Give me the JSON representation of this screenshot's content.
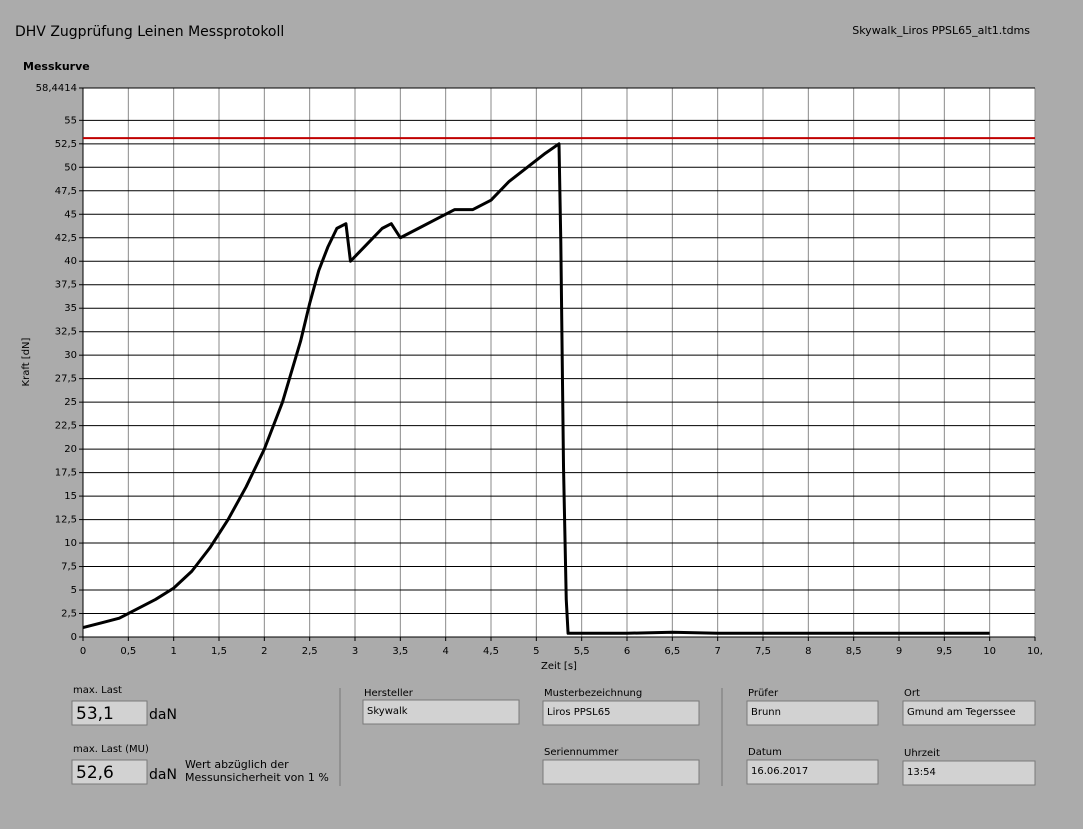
{
  "header": {
    "title": "DHV Zugprüfung Leinen Messprotokoll",
    "file": "Skywalk_Liros PPSL65_alt1.tdms"
  },
  "chart_data": {
    "type": "line",
    "title": "Messkurve",
    "x_label": "Zeit [s]",
    "y_label": "Kraft [dN]",
    "x": [
      0,
      0.2,
      0.4,
      0.6,
      0.8,
      1.0,
      1.2,
      1.4,
      1.6,
      1.8,
      2.0,
      2.2,
      2.4,
      2.5,
      2.6,
      2.7,
      2.8,
      2.9,
      2.95,
      3.1,
      3.3,
      3.4,
      3.5,
      3.7,
      3.9,
      4.1,
      4.3,
      4.5,
      4.7,
      4.9,
      5.1,
      5.25,
      5.27,
      5.3,
      5.33,
      5.35,
      6.0,
      6.5,
      7.0,
      8.0,
      9.0,
      10.0
    ],
    "values": [
      1,
      1.5,
      2,
      3,
      4,
      5.2,
      7,
      9.5,
      12.5,
      16,
      20,
      25,
      31.5,
      35.5,
      39,
      41.5,
      43.5,
      44,
      40,
      41.5,
      43.5,
      44,
      42.5,
      43.5,
      44.5,
      45.5,
      45.5,
      46.5,
      48.5,
      50,
      51.5,
      52.5,
      42,
      18,
      4,
      0.4,
      0.4,
      0.5,
      0.4,
      0.4,
      0.4,
      0.4
    ],
    "color": "#000000",
    "threshold": {
      "value": 53.1,
      "color": "#c00000"
    },
    "xlim": [
      0,
      10.5
    ],
    "ylim": [
      0,
      58.4414
    ],
    "xticks": [
      0,
      {
        "value": 0.5,
        "label": "0,5"
      },
      1,
      {
        "value": 1.5,
        "label": "1,5"
      },
      2,
      {
        "value": 2.5,
        "label": "2,5"
      },
      3,
      {
        "value": 3.5,
        "label": "3,5"
      },
      4,
      {
        "value": 4.5,
        "label": "4,5"
      },
      5,
      {
        "value": 5.5,
        "label": "5,5"
      },
      6,
      {
        "value": 6.5,
        "label": "6,5"
      },
      7,
      {
        "value": 7.5,
        "label": "7,5"
      },
      8,
      {
        "value": 8.5,
        "label": "8,5"
      },
      9,
      {
        "value": 9.5,
        "label": "9,5"
      },
      10,
      {
        "value": 10.5,
        "label": "10,"
      }
    ],
    "yticks": [
      0,
      {
        "value": 2.5,
        "label": "2,5"
      },
      5,
      {
        "value": 7.5,
        "label": "7,5"
      },
      10,
      {
        "value": 12.5,
        "label": "12,5"
      },
      15,
      {
        "value": 17.5,
        "label": "17,5"
      },
      20,
      {
        "value": 22.5,
        "label": "22,5"
      },
      25,
      {
        "value": 27.5,
        "label": "27,5"
      },
      30,
      {
        "value": 32.5,
        "label": "32,5"
      },
      35,
      {
        "value": 37.5,
        "label": "37,5"
      },
      40,
      {
        "value": 42.5,
        "label": "42,5"
      },
      45,
      {
        "value": 47.5,
        "label": "47,5"
      },
      50,
      {
        "value": 52.5,
        "label": "52,5"
      },
      55,
      {
        "value": 58.4414,
        "label": "58,4414"
      }
    ],
    "grid": true
  },
  "fields": {
    "max_last": {
      "label": "max. Last",
      "value": "53,1",
      "unit": "daN"
    },
    "max_last_mu": {
      "label": "max. Last (MU)",
      "value": "52,6",
      "unit": "daN",
      "note_1": "Wert abzüglich der",
      "note_2": "Messunsicherheit von 1 %"
    },
    "hersteller": {
      "label": "Hersteller",
      "value": "Skywalk"
    },
    "musterbezeichnung": {
      "label": "Musterbezeichnung",
      "value": "Liros PPSL65"
    },
    "seriennummer": {
      "label": "Seriennummer"
    },
    "pruefer": {
      "label": "Prüfer",
      "value": "Brunn"
    },
    "ort": {
      "label": "Ort",
      "value": "Gmund am Tegerssee"
    },
    "datum": {
      "label": "Datum",
      "value": "16.06.2017"
    },
    "uhrzeit": {
      "label": "Uhrzeit",
      "value": "13:54"
    }
  }
}
